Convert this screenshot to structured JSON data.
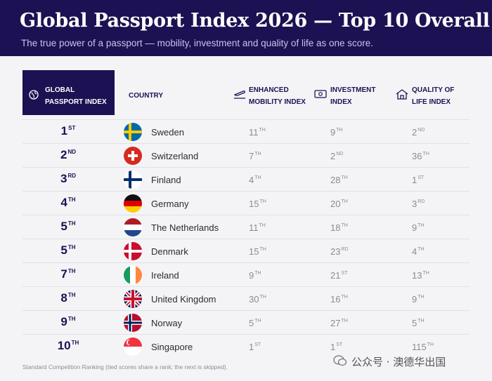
{
  "header": {
    "title": "Global Passport Index 2026 — Top 10 Overall",
    "subtitle": "The true power of a passport — mobility, investment and quality of life as one score."
  },
  "table": {
    "columns": [
      "GLOBAL PASSPORT INDEX",
      "COUNTRY",
      "ENHANCED MOBILITY INDEX",
      "INVESTMENT INDEX",
      "QUALITY OF LIFE INDEX"
    ],
    "rows": [
      {
        "rank": {
          "number": "1",
          "suffix": "ST"
        },
        "country": "Sweden",
        "mobility": {
          "number": "11",
          "suffix": "TH"
        },
        "investment": {
          "number": "9",
          "suffix": "TH"
        },
        "quality": {
          "number": "2",
          "suffix": "ND"
        }
      },
      {
        "rank": {
          "number": "2",
          "suffix": "ND"
        },
        "country": "Switzerland",
        "mobility": {
          "number": "7",
          "suffix": "TH"
        },
        "investment": {
          "number": "2",
          "suffix": "ND"
        },
        "quality": {
          "number": "36",
          "suffix": "TH"
        }
      },
      {
        "rank": {
          "number": "3",
          "suffix": "RD"
        },
        "country": "Finland",
        "mobility": {
          "number": "4",
          "suffix": "TH"
        },
        "investment": {
          "number": "28",
          "suffix": "TH"
        },
        "quality": {
          "number": "1",
          "suffix": "ST"
        }
      },
      {
        "rank": {
          "number": "4",
          "suffix": "TH"
        },
        "country": "Germany",
        "mobility": {
          "number": "15",
          "suffix": "TH"
        },
        "investment": {
          "number": "20",
          "suffix": "TH"
        },
        "quality": {
          "number": "3",
          "suffix": "RD"
        }
      },
      {
        "rank": {
          "number": "5",
          "suffix": "TH"
        },
        "country": "The Netherlands",
        "mobility": {
          "number": "11",
          "suffix": "TH"
        },
        "investment": {
          "number": "18",
          "suffix": "TH"
        },
        "quality": {
          "number": "9",
          "suffix": "TH"
        }
      },
      {
        "rank": {
          "number": "5",
          "suffix": "TH"
        },
        "country": "Denmark",
        "mobility": {
          "number": "15",
          "suffix": "TH"
        },
        "investment": {
          "number": "23",
          "suffix": "RD"
        },
        "quality": {
          "number": "4",
          "suffix": "TH"
        }
      },
      {
        "rank": {
          "number": "7",
          "suffix": "TH"
        },
        "country": "Ireland",
        "mobility": {
          "number": "9",
          "suffix": "TH"
        },
        "investment": {
          "number": "21",
          "suffix": "ST"
        },
        "quality": {
          "number": "13",
          "suffix": "TH"
        }
      },
      {
        "rank": {
          "number": "8",
          "suffix": "TH"
        },
        "country": "United Kingdom",
        "mobility": {
          "number": "30",
          "suffix": "TH"
        },
        "investment": {
          "number": "16",
          "suffix": "TH"
        },
        "quality": {
          "number": "9",
          "suffix": "TH"
        }
      },
      {
        "rank": {
          "number": "9",
          "suffix": "TH"
        },
        "country": "Norway",
        "mobility": {
          "number": "5",
          "suffix": "TH"
        },
        "investment": {
          "number": "27",
          "suffix": "TH"
        },
        "quality": {
          "number": "5",
          "suffix": "TH"
        }
      },
      {
        "rank": {
          "number": "10",
          "suffix": "TH"
        },
        "country": "Singapore",
        "mobility": {
          "number": "1",
          "suffix": "ST"
        },
        "investment": {
          "number": "1",
          "suffix": "ST"
        },
        "quality": {
          "number": "115",
          "suffix": "TH"
        }
      }
    ]
  },
  "footnote": "Standard Competition Ranking (tied scores share a rank; the next is skipped).",
  "watermark": "公众号 · 澳德华出国"
}
